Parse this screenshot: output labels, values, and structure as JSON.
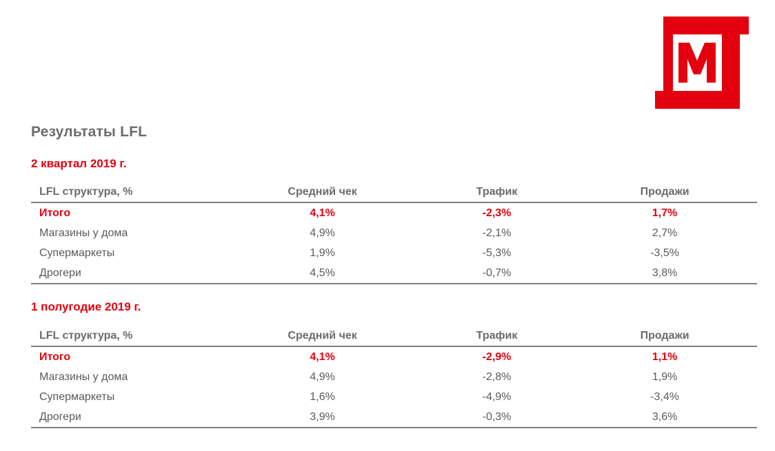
{
  "brand": {
    "logo": "magnit-logo",
    "accent": "#e3000f"
  },
  "page_title": "Результаты LFL",
  "columns": {
    "label": "LFL структура, %",
    "avg_check": "Средний чек",
    "traffic": "Трафик",
    "sales": "Продажи"
  },
  "q2": {
    "title": "2 квартал 2019 г.",
    "rows": [
      {
        "label": "Итого",
        "avg_check": "4,1%",
        "traffic": "-2,3%",
        "sales": "1,7%"
      },
      {
        "label": "Магазины у дома",
        "avg_check": "4,9%",
        "traffic": "-2,1%",
        "sales": "2,7%"
      },
      {
        "label": "Супермаркеты",
        "avg_check": "1,9%",
        "traffic": "-5,3%",
        "sales": "-3,5%"
      },
      {
        "label": "Дрогери",
        "avg_check": "4,5%",
        "traffic": "-0,7%",
        "sales": "3,8%"
      }
    ]
  },
  "h1": {
    "title": "1 полугодие 2019 г.",
    "rows": [
      {
        "label": "Итого",
        "avg_check": "4,1%",
        "traffic": "-2,9%",
        "sales": "1,1%"
      },
      {
        "label": "Магазины у дома",
        "avg_check": "4,9%",
        "traffic": "-2,8%",
        "sales": "1,9%"
      },
      {
        "label": "Супермаркеты",
        "avg_check": "1,6%",
        "traffic": "-4,9%",
        "sales": "-3,4%"
      },
      {
        "label": "Дрогери",
        "avg_check": "3,9%",
        "traffic": "-0,3%",
        "sales": "3,6%"
      }
    ]
  }
}
